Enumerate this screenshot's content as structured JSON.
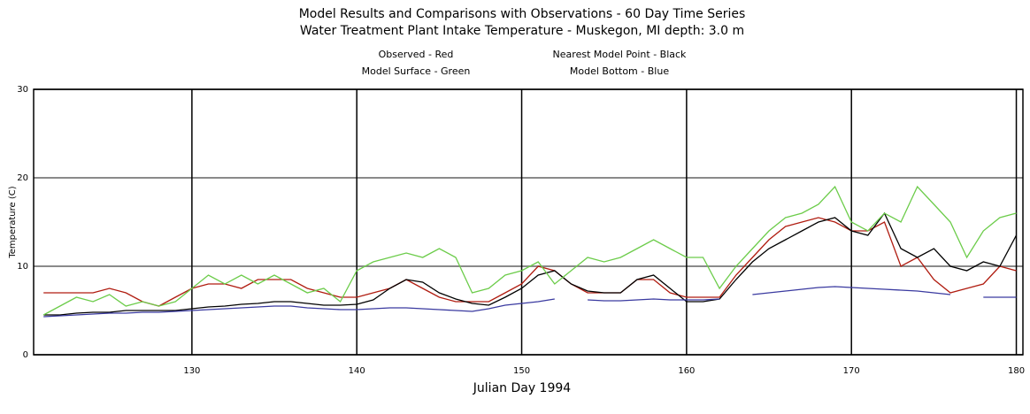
{
  "chart_data": {
    "type": "line",
    "title": "Model Results and Comparisons with Observations - 60 Day Time Series",
    "subtitle": "Water Treatment Plant Intake Temperature - Muskegon, MI  depth: 3.0 m",
    "x_label": "Julian Day 1994",
    "y_label": "Temperature (C)",
    "xlim": [
      120.4,
      180.4
    ],
    "ylim": [
      0,
      30
    ],
    "xticks": [
      130,
      140,
      150,
      160,
      170,
      180
    ],
    "yticks": [
      0,
      10,
      20,
      30
    ],
    "grid": true,
    "x": [
      121,
      122,
      123,
      124,
      125,
      126,
      127,
      128,
      129,
      130,
      131,
      132,
      133,
      134,
      135,
      136,
      137,
      138,
      139,
      140,
      141,
      142,
      143,
      144,
      145,
      146,
      147,
      148,
      149,
      150,
      151,
      152,
      153,
      154,
      155,
      156,
      157,
      158,
      159,
      160,
      161,
      162,
      163,
      164,
      165,
      166,
      167,
      168,
      169,
      170,
      171,
      172,
      173,
      174,
      175,
      176,
      177,
      178,
      179,
      180
    ],
    "series": [
      {
        "name": "Observed - Red",
        "color": "#b01c10",
        "values": [
          7,
          7,
          7,
          7,
          7.5,
          7,
          6,
          5.5,
          6.5,
          7.5,
          8,
          8,
          7.5,
          8.5,
          8.5,
          8.5,
          7.5,
          7,
          6.5,
          6.5,
          7,
          7.5,
          8.5,
          7.5,
          6.5,
          6,
          6,
          6,
          7,
          8,
          10,
          9.5,
          8,
          7,
          7,
          7,
          8.5,
          8.5,
          7,
          6.5,
          6.5,
          6.5,
          9,
          11,
          13,
          14.5,
          15,
          15.5,
          15,
          14,
          14,
          15,
          10,
          11,
          8.5,
          7,
          7.5,
          8,
          10,
          9.5
        ]
      },
      {
        "name": "Nearest Model Point - Black",
        "color": "#000000",
        "values": [
          4.5,
          4.5,
          4.7,
          4.8,
          4.8,
          5,
          5,
          5,
          5,
          5.2,
          5.4,
          5.5,
          5.7,
          5.8,
          6,
          6,
          5.8,
          5.6,
          5.6,
          5.7,
          6.2,
          7.5,
          8.5,
          8.2,
          7,
          6.3,
          5.8,
          5.6,
          6.5,
          7.5,
          9,
          9.5,
          8,
          7.2,
          7,
          7,
          8.5,
          9,
          7.5,
          6,
          6,
          6.3,
          8.5,
          10.5,
          12,
          13,
          14,
          15,
          15.5,
          14,
          13.5,
          16,
          12,
          11,
          12,
          10,
          9.5,
          10.5,
          10,
          13.5
        ]
      },
      {
        "name": "Model Surface - Green",
        "color": "#6ccc4a",
        "values": [
          4.5,
          5.5,
          6.5,
          6,
          6.8,
          5.5,
          6,
          5.5,
          6,
          7.5,
          9,
          8,
          9,
          8,
          9,
          8,
          7,
          7.5,
          6,
          9.5,
          10.5,
          11,
          11.5,
          11,
          12,
          11,
          7,
          7.5,
          9,
          9.5,
          10.5,
          8,
          9.5,
          11,
          10.5,
          11,
          12,
          13,
          12,
          11,
          11,
          7.5,
          10,
          12,
          14,
          15.5,
          16,
          17,
          19,
          15,
          14,
          16,
          15,
          19,
          17,
          15,
          11,
          14,
          15.5,
          16
        ]
      },
      {
        "name": "Model Bottom - Blue",
        "color": "#3a3aa0",
        "values": [
          4.3,
          4.4,
          4.5,
          4.6,
          4.7,
          4.7,
          4.8,
          4.8,
          4.9,
          5.0,
          5.1,
          5.2,
          5.3,
          5.4,
          5.5,
          5.5,
          5.3,
          5.2,
          5.1,
          5.1,
          5.2,
          5.3,
          5.3,
          5.2,
          5.1,
          5.0,
          4.9,
          5.2,
          5.6,
          5.8,
          6.0,
          6.3,
          null,
          6.2,
          6.1,
          6.1,
          6.2,
          6.3,
          6.2,
          6.2,
          6.2,
          6.3,
          null,
          6.8,
          7.0,
          7.2,
          7.4,
          7.6,
          7.7,
          7.6,
          7.5,
          7.4,
          7.3,
          7.2,
          7.0,
          6.8,
          null,
          6.5,
          6.5,
          6.5
        ]
      }
    ]
  }
}
